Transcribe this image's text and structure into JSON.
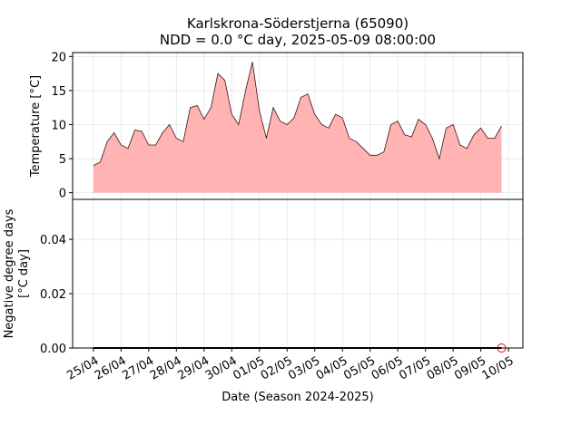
{
  "chart_data": [
    {
      "type": "area",
      "title": "Karlskrona-Söderstjerna (65090)",
      "subtitle": "NDD = 0.0 °C day, 2025-05-09 08:00:00",
      "ylabel": "Temperature [°C]",
      "x": [
        "2025-04-25 00:00",
        "2025-04-25 06:00",
        "2025-04-25 12:00",
        "2025-04-25 18:00",
        "2025-04-26 00:00",
        "2025-04-26 06:00",
        "2025-04-26 12:00",
        "2025-04-26 18:00",
        "2025-04-27 00:00",
        "2025-04-27 06:00",
        "2025-04-27 12:00",
        "2025-04-27 18:00",
        "2025-04-28 00:00",
        "2025-04-28 06:00",
        "2025-04-28 12:00",
        "2025-04-28 18:00",
        "2025-04-29 00:00",
        "2025-04-29 06:00",
        "2025-04-29 12:00",
        "2025-04-29 18:00",
        "2025-04-30 00:00",
        "2025-04-30 06:00",
        "2025-04-30 12:00",
        "2025-04-30 18:00",
        "2025-05-01 00:00",
        "2025-05-01 06:00",
        "2025-05-01 12:00",
        "2025-05-01 18:00",
        "2025-05-02 00:00",
        "2025-05-02 06:00",
        "2025-05-02 12:00",
        "2025-05-02 18:00",
        "2025-05-03 00:00",
        "2025-05-03 06:00",
        "2025-05-03 12:00",
        "2025-05-03 18:00",
        "2025-05-04 00:00",
        "2025-05-04 06:00",
        "2025-05-04 12:00",
        "2025-05-04 18:00",
        "2025-05-05 00:00",
        "2025-05-05 06:00",
        "2025-05-05 12:00",
        "2025-05-05 18:00",
        "2025-05-06 00:00",
        "2025-05-06 06:00",
        "2025-05-06 12:00",
        "2025-05-06 18:00",
        "2025-05-07 00:00",
        "2025-05-07 06:00",
        "2025-05-07 12:00",
        "2025-05-07 18:00",
        "2025-05-08 00:00",
        "2025-05-08 06:00",
        "2025-05-08 12:00",
        "2025-05-08 18:00",
        "2025-05-09 00:00",
        "2025-05-09 06:00",
        "2025-05-09 12:00",
        "2025-05-09 18:00"
      ],
      "series": [
        {
          "color": "#3b1212",
          "fill": "#ffb3b3",
          "values": [
            4.0,
            4.5,
            7.5,
            8.8,
            7.0,
            6.5,
            9.2,
            9.0,
            7.0,
            7.0,
            8.8,
            10.0,
            8.0,
            7.5,
            12.5,
            12.8,
            10.8,
            12.5,
            17.5,
            16.5,
            11.5,
            10.0,
            15.0,
            19.2,
            12.0,
            8.0,
            12.5,
            10.5,
            10.0,
            11.0,
            14.0,
            14.5,
            11.5,
            10.0,
            9.5,
            11.5,
            11.0,
            8.0,
            7.5,
            6.5,
            5.5,
            5.5,
            6.0,
            10.0,
            10.5,
            8.5,
            8.2,
            10.8,
            10.0,
            8.0,
            5.0,
            9.5,
            10.0,
            7.0,
            6.5,
            8.5,
            9.5,
            8.0,
            8.0,
            9.8
          ]
        }
      ],
      "xlim": [
        "2025-04-24 06:00",
        "2025-05-10 12:30"
      ],
      "ylim": [
        -0.98,
        20.58
      ],
      "yticks": [
        0,
        5,
        10,
        15,
        20
      ],
      "grid": true
    },
    {
      "type": "line",
      "xlabel": "Date (Season 2024-2025)",
      "ylabel": [
        "Negative degree days",
        "[°C day]"
      ],
      "x": [
        "2025-04-25 00:00",
        "2025-05-09 18:00"
      ],
      "series": [
        {
          "color": "#000000",
          "values": [
            0,
            0
          ]
        }
      ],
      "marker": {
        "x": "2025-05-09 18:00",
        "value": 0,
        "color": "#ff0000"
      },
      "xlim": [
        "2025-04-24 06:00",
        "2025-05-10 12:30"
      ],
      "ylim": [
        0,
        0.0547
      ],
      "yticks": [
        {
          "value": 0,
          "label": "0.00"
        },
        {
          "value": 0.02,
          "label": "0.02"
        },
        {
          "value": 0.04,
          "label": "0.04"
        }
      ],
      "xticks": [
        {
          "value": "2025-04-25 00:00",
          "label": "25/04"
        },
        {
          "value": "2025-04-26 00:00",
          "label": "26/04"
        },
        {
          "value": "2025-04-27 00:00",
          "label": "27/04"
        },
        {
          "value": "2025-04-28 00:00",
          "label": "28/04"
        },
        {
          "value": "2025-04-29 00:00",
          "label": "29/04"
        },
        {
          "value": "2025-04-30 00:00",
          "label": "30/04"
        },
        {
          "value": "2025-05-01 00:00",
          "label": "01/05"
        },
        {
          "value": "2025-05-02 00:00",
          "label": "02/05"
        },
        {
          "value": "2025-05-03 00:00",
          "label": "03/05"
        },
        {
          "value": "2025-05-04 00:00",
          "label": "04/05"
        },
        {
          "value": "2025-05-05 00:00",
          "label": "05/05"
        },
        {
          "value": "2025-05-06 00:00",
          "label": "06/05"
        },
        {
          "value": "2025-05-07 00:00",
          "label": "07/05"
        },
        {
          "value": "2025-05-08 00:00",
          "label": "08/05"
        },
        {
          "value": "2025-05-09 00:00",
          "label": "09/05"
        },
        {
          "value": "2025-05-10 00:00",
          "label": "10/05"
        }
      ],
      "grid": true
    }
  ]
}
